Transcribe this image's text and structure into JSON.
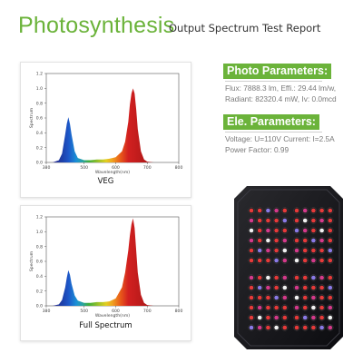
{
  "header": {
    "title": "Photosynthesis",
    "subtitle": "Output Spectrum Test Report"
  },
  "photo_parameters": {
    "heading": "Photo Parameters:",
    "lines": [
      "Flux: 7888.3 lm, Effi.: 29.44 lm/w,",
      "Radiant: 82320.4 mW, Iv: 0.0mcd"
    ]
  },
  "ele_parameters": {
    "heading": "Ele. Parameters:",
    "lines": [
      "Voltage: U=110V  Current: I=2.5A",
      "Power Factor: 0.99"
    ]
  },
  "product_image": {
    "icon": "led-grow-light-panel-icon"
  },
  "colors": {
    "accent": "#6bb33a",
    "red_peak": "#cc1f1f",
    "blue_peak": "#1d4fb8"
  },
  "chart_data": [
    {
      "type": "area",
      "caption": "VEG",
      "xlabel": "Wavelength(nm)",
      "ylabel": "Spectrum",
      "xlim": [
        380,
        800
      ],
      "ylim": [
        0,
        1.2
      ],
      "x_ticks": [
        380,
        500,
        600,
        700,
        800
      ],
      "y_ticks": [
        0.0,
        0.2,
        0.4,
        0.6,
        0.8,
        1.0,
        1.2
      ],
      "x": [
        380,
        400,
        420,
        430,
        440,
        445,
        450,
        455,
        460,
        470,
        480,
        500,
        520,
        540,
        560,
        580,
        600,
        620,
        630,
        640,
        645,
        650,
        655,
        660,
        665,
        670,
        680,
        690,
        700,
        720,
        740,
        760,
        780,
        800
      ],
      "values": [
        0,
        0,
        0.03,
        0.12,
        0.38,
        0.52,
        0.61,
        0.52,
        0.38,
        0.15,
        0.06,
        0.03,
        0.03,
        0.04,
        0.04,
        0.05,
        0.07,
        0.15,
        0.28,
        0.55,
        0.78,
        0.93,
        1.0,
        0.93,
        0.72,
        0.45,
        0.15,
        0.04,
        0.01,
        0,
        0,
        0,
        0,
        0
      ]
    },
    {
      "type": "area",
      "caption": "Full Spectrum",
      "xlabel": "Wavelength(nm)",
      "ylabel": "Spectrum",
      "xlim": [
        380,
        800
      ],
      "ylim": [
        0,
        1.2
      ],
      "x_ticks": [
        380,
        500,
        600,
        700,
        800
      ],
      "y_ticks": [
        0.0,
        0.2,
        0.4,
        0.6,
        0.8,
        1.0,
        1.2
      ],
      "x": [
        380,
        400,
        420,
        430,
        440,
        445,
        450,
        455,
        460,
        470,
        480,
        500,
        520,
        540,
        560,
        580,
        600,
        620,
        630,
        640,
        645,
        650,
        655,
        660,
        665,
        670,
        680,
        690,
        700,
        720,
        740,
        760,
        780,
        800
      ],
      "values": [
        0,
        0,
        0.02,
        0.08,
        0.25,
        0.38,
        0.48,
        0.42,
        0.3,
        0.14,
        0.07,
        0.04,
        0.04,
        0.05,
        0.05,
        0.06,
        0.1,
        0.25,
        0.45,
        0.75,
        0.95,
        1.1,
        1.18,
        1.05,
        0.75,
        0.45,
        0.15,
        0.04,
        0.01,
        0,
        0,
        0,
        0,
        0
      ]
    }
  ]
}
